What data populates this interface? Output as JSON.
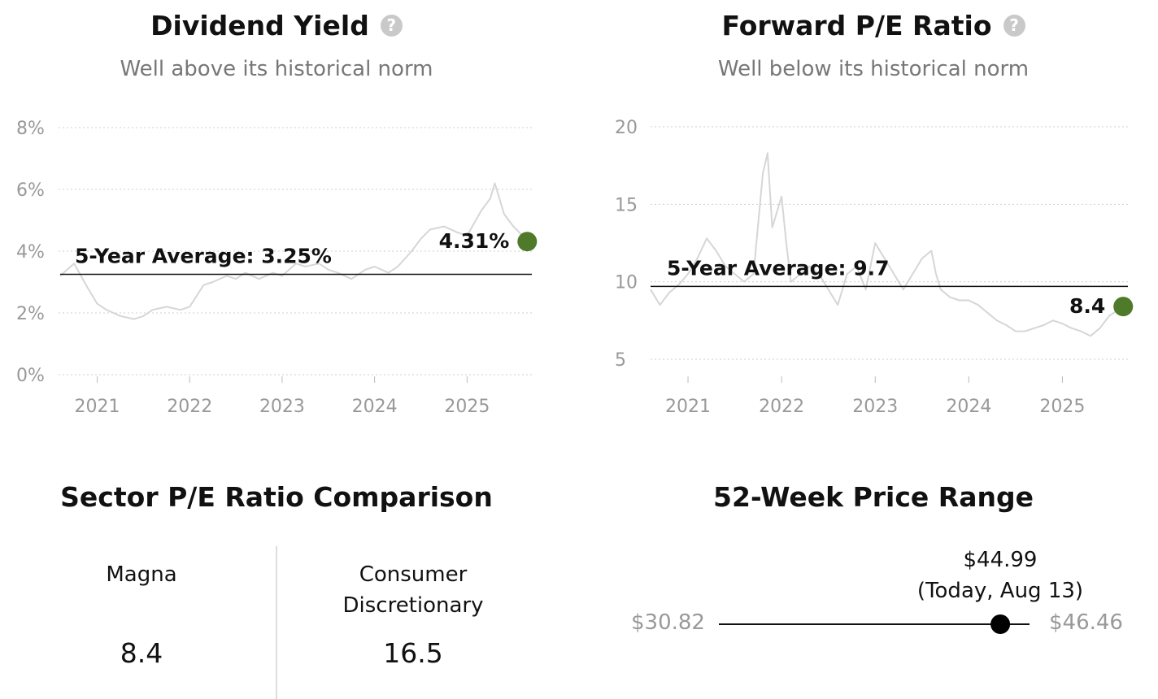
{
  "dividend": {
    "title": "Dividend Yield",
    "help_icon": "question-circle-icon",
    "subtitle": "Well above its historical norm",
    "average_label": "5-Year Average: 3.25%",
    "current_label": "4.31%"
  },
  "pe": {
    "title": "Forward P/E Ratio",
    "help_icon": "question-circle-icon",
    "subtitle": "Well below its historical norm",
    "average_label": "5-Year Average: 9.7",
    "current_label": "8.4"
  },
  "sector": {
    "title": "Sector P/E Ratio Comparison",
    "left": {
      "label": "Magna",
      "value": "8.4"
    },
    "right": {
      "label_line1": "Consumer",
      "label_line2": "Discretionary",
      "value": "16.5"
    }
  },
  "range": {
    "title": "52-Week Price Range",
    "low": "$30.82",
    "high": "$46.46",
    "current_line1": "$44.99",
    "current_line2": "(Today, Aug 13)",
    "low_value": 30.82,
    "high_value": 46.46,
    "current_value": 44.99
  },
  "chart_data": [
    {
      "type": "line",
      "title": "Dividend Yield",
      "subtitle": "Well above its historical norm",
      "x_ticks": [
        "2021",
        "2022",
        "2023",
        "2024",
        "2025"
      ],
      "y_ticks": [
        "0%",
        "2%",
        "4%",
        "6%",
        "8%"
      ],
      "xlim": [
        2020.6,
        2025.7
      ],
      "ylim": [
        0,
        8
      ],
      "grid": true,
      "average": 3.25,
      "current": 4.31,
      "series": [
        {
          "x": [
            2020.6,
            2020.75,
            2020.9,
            2021.0,
            2021.1,
            2021.25,
            2021.4,
            2021.5,
            2021.6,
            2021.75,
            2021.9,
            2022.0,
            2022.15,
            2022.25,
            2022.4,
            2022.5,
            2022.6,
            2022.75,
            2022.9,
            2023.0,
            2023.15,
            2023.25,
            2023.4,
            2023.5,
            2023.6,
            2023.75,
            2023.9,
            2024.0,
            2024.15,
            2024.25,
            2024.4,
            2024.5,
            2024.6,
            2024.75,
            2024.9,
            2025.0,
            2025.15,
            2025.25,
            2025.3,
            2025.4,
            2025.5,
            2025.6,
            2025.65
          ],
          "values": [
            3.2,
            3.6,
            2.8,
            2.3,
            2.1,
            1.9,
            1.8,
            1.9,
            2.1,
            2.2,
            2.1,
            2.2,
            2.9,
            3.0,
            3.2,
            3.1,
            3.3,
            3.1,
            3.3,
            3.2,
            3.6,
            3.5,
            3.6,
            3.4,
            3.3,
            3.1,
            3.4,
            3.5,
            3.3,
            3.5,
            4.0,
            4.4,
            4.7,
            4.8,
            4.6,
            4.5,
            5.3,
            5.7,
            6.2,
            5.2,
            4.8,
            4.5,
            4.31
          ]
        }
      ]
    },
    {
      "type": "line",
      "title": "Forward P/E Ratio",
      "subtitle": "Well below its historical norm",
      "x_ticks": [
        "2021",
        "2022",
        "2023",
        "2024",
        "2025"
      ],
      "y_ticks": [
        "5",
        "10",
        "15",
        "20"
      ],
      "xlim": [
        2020.6,
        2025.7
      ],
      "ylim": [
        4,
        20
      ],
      "grid": true,
      "average": 9.7,
      "current": 8.4,
      "series": [
        {
          "x": [
            2020.6,
            2020.7,
            2020.8,
            2020.9,
            2021.0,
            2021.1,
            2021.2,
            2021.3,
            2021.4,
            2021.5,
            2021.6,
            2021.7,
            2021.8,
            2021.85,
            2021.9,
            2022.0,
            2022.05,
            2022.1,
            2022.2,
            2022.3,
            2022.4,
            2022.5,
            2022.6,
            2022.7,
            2022.8,
            2022.9,
            2023.0,
            2023.1,
            2023.2,
            2023.3,
            2023.4,
            2023.5,
            2023.6,
            2023.65,
            2023.7,
            2023.8,
            2023.9,
            2024.0,
            2024.1,
            2024.2,
            2024.3,
            2024.4,
            2024.5,
            2024.6,
            2024.7,
            2024.8,
            2024.9,
            2025.0,
            2025.1,
            2025.2,
            2025.3,
            2025.4,
            2025.5,
            2025.65
          ],
          "values": [
            9.5,
            8.5,
            9.3,
            9.8,
            10.5,
            11.5,
            12.8,
            12.0,
            11.0,
            10.5,
            10.0,
            10.5,
            17.0,
            18.3,
            13.5,
            15.5,
            12.5,
            10.0,
            10.5,
            11.0,
            10.5,
            9.5,
            8.5,
            10.5,
            11.0,
            9.5,
            12.5,
            11.5,
            10.5,
            9.5,
            10.5,
            11.5,
            12.0,
            10.5,
            9.5,
            9.0,
            8.8,
            8.8,
            8.5,
            8.0,
            7.5,
            7.2,
            6.8,
            6.8,
            7.0,
            7.2,
            7.5,
            7.3,
            7.0,
            6.8,
            6.5,
            7.0,
            7.8,
            8.4
          ]
        }
      ]
    }
  ]
}
